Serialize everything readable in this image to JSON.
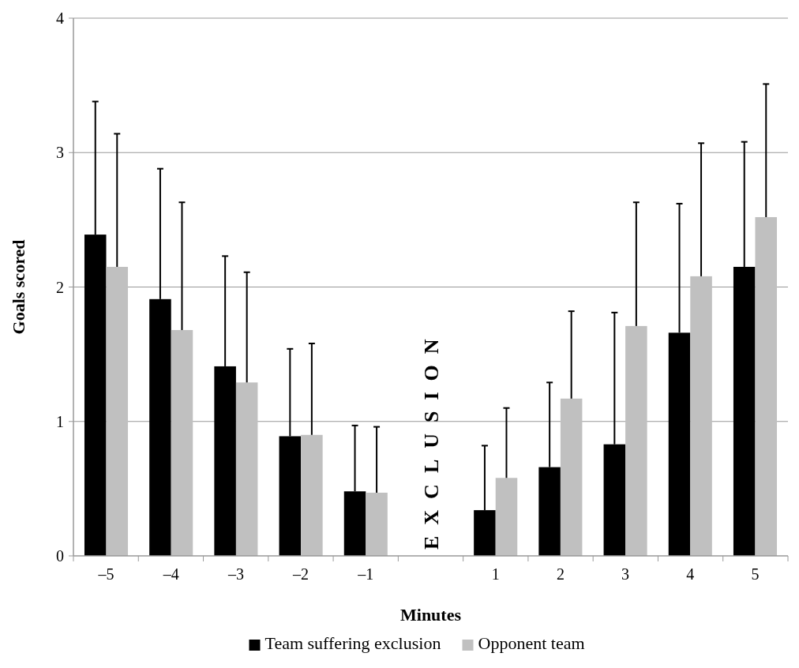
{
  "chart_data": {
    "type": "bar",
    "xlabel": "Minutes",
    "ylabel": "Goals scored",
    "categories": [
      "–5",
      "–4",
      "–3",
      "–2",
      "–1",
      null,
      "1",
      "2",
      "3",
      "4",
      "5"
    ],
    "series": [
      {
        "name": "Team suffering exclusion",
        "color": "#000000",
        "values": [
          2.39,
          1.91,
          1.41,
          0.89,
          0.48,
          null,
          0.34,
          0.66,
          0.83,
          1.66,
          2.15
        ],
        "errors": [
          [
            2.39,
            3.38
          ],
          [
            1.91,
            2.88
          ],
          [
            1.41,
            2.23
          ],
          [
            0.89,
            1.54
          ],
          [
            0.48,
            0.97
          ],
          null,
          [
            0.34,
            0.82
          ],
          [
            0.66,
            1.29
          ],
          [
            0.83,
            1.81
          ],
          [
            1.66,
            2.62
          ],
          [
            2.15,
            3.08
          ]
        ]
      },
      {
        "name": "Opponent team",
        "color": "#c0c0c0",
        "values": [
          2.15,
          1.68,
          1.29,
          0.9,
          0.47,
          null,
          0.58,
          1.17,
          1.71,
          2.08,
          2.52
        ],
        "errors": [
          [
            2.15,
            3.14
          ],
          [
            1.68,
            2.63
          ],
          [
            1.29,
            2.11
          ],
          [
            0.9,
            1.58
          ],
          [
            0.47,
            0.96
          ],
          null,
          [
            0.58,
            1.1
          ],
          [
            1.17,
            1.82
          ],
          [
            1.71,
            2.63
          ],
          [
            2.08,
            3.07
          ],
          [
            2.52,
            3.51
          ]
        ]
      }
    ],
    "annotations": [
      "EXCLUSION"
    ],
    "ylim": [
      0,
      4
    ],
    "yticks": [
      0,
      1,
      2,
      3,
      4
    ],
    "grid": "y",
    "legend": "bottom"
  }
}
